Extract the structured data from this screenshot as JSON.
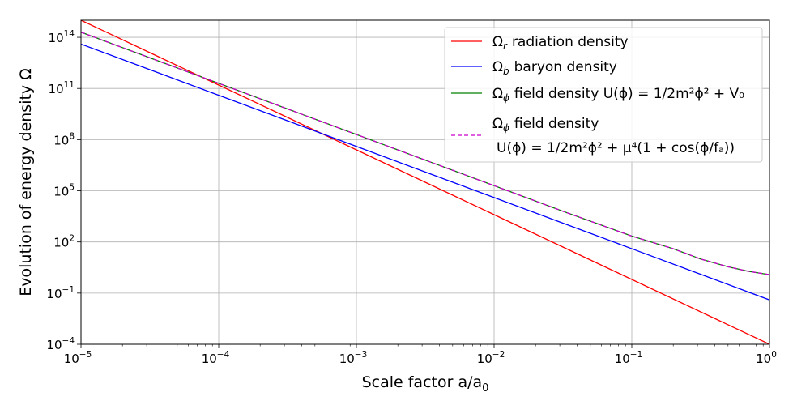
{
  "chart_data": {
    "type": "line",
    "xscale": "log",
    "yscale": "log",
    "xlim": [
      1e-05,
      1
    ],
    "ylim": [
      0.0001,
      1000000000000000
    ],
    "xlabel": "Scale factor a/a",
    "xlabel_sub": "0",
    "ylabel": "Evolution of energy density Ω",
    "grid": true,
    "legend_position": "top-right",
    "x_ticks": [
      {
        "value": 1e-05,
        "base": "10",
        "exp": "−5"
      },
      {
        "value": 0.0001,
        "base": "10",
        "exp": "−4"
      },
      {
        "value": 0.001,
        "base": "10",
        "exp": "−3"
      },
      {
        "value": 0.01,
        "base": "10",
        "exp": "−2"
      },
      {
        "value": 0.1,
        "base": "10",
        "exp": "−1"
      },
      {
        "value": 1,
        "base": "10",
        "exp": "0"
      }
    ],
    "y_ticks": [
      {
        "value": 0.0001,
        "base": "10",
        "exp": "−4"
      },
      {
        "value": 0.1,
        "base": "10",
        "exp": "−1"
      },
      {
        "value": 100,
        "base": "10",
        "exp": "2"
      },
      {
        "value": 100000,
        "base": "10",
        "exp": "5"
      },
      {
        "value": 100000000,
        "base": "10",
        "exp": "8"
      },
      {
        "value": 100000000000,
        "base": "10",
        "exp": "11"
      },
      {
        "value": 100000000000000,
        "base": "10",
        "exp": "14"
      }
    ],
    "series": [
      {
        "name": "radiation",
        "legend_symbol": "Ω",
        "legend_sub": "r",
        "legend_text": "radiation density",
        "color": "#ff0000",
        "dashed": false,
        "x": [
          1e-05,
          1
        ],
        "y": [
          1000000000000000,
          0.0001
        ]
      },
      {
        "name": "baryon",
        "legend_symbol": "Ω",
        "legend_sub": "b",
        "legend_text": "baryon density",
        "color": "#0000ff",
        "dashed": false,
        "x": [
          1e-05,
          1
        ],
        "y": [
          40000000000000,
          0.04
        ]
      },
      {
        "name": "field-quadratic",
        "legend_symbol": "Ω",
        "legend_sub": "ϕ",
        "legend_text": "field density U(ϕ) = 1/2m²ϕ² + V₀",
        "color": "#008000",
        "dashed": false,
        "x": [
          1e-05,
          3.16e-05,
          0.0001,
          0.000316,
          0.001,
          0.00316,
          0.01,
          0.0316,
          0.1,
          0.2,
          0.316,
          0.5,
          0.7,
          1
        ],
        "y": [
          199000000000000,
          6300000000000,
          200000000000,
          6300000000,
          200000000,
          6300000,
          200000,
          6300,
          220,
          40,
          10,
          3.5,
          1.9,
          1.2
        ]
      },
      {
        "name": "field-cosine",
        "legend_symbol": "Ω",
        "legend_sub": "ϕ",
        "legend_text": "field density",
        "legend_text_line2": "U(ϕ) = 1/2m²ϕ² + μ⁴(1 + cos(ϕ/fₐ))",
        "color": "#cc00cc",
        "dashed": true,
        "x": [
          1e-05,
          3.16e-05,
          0.0001,
          0.000316,
          0.001,
          0.00316,
          0.01,
          0.0316,
          0.1,
          0.2,
          0.316,
          0.5,
          0.7,
          1
        ],
        "y": [
          199000000000000,
          6300000000000,
          200000000000,
          6300000000,
          200000000,
          6300000,
          200000,
          6300,
          220,
          40,
          10,
          3.5,
          1.9,
          1.2
        ]
      }
    ]
  }
}
